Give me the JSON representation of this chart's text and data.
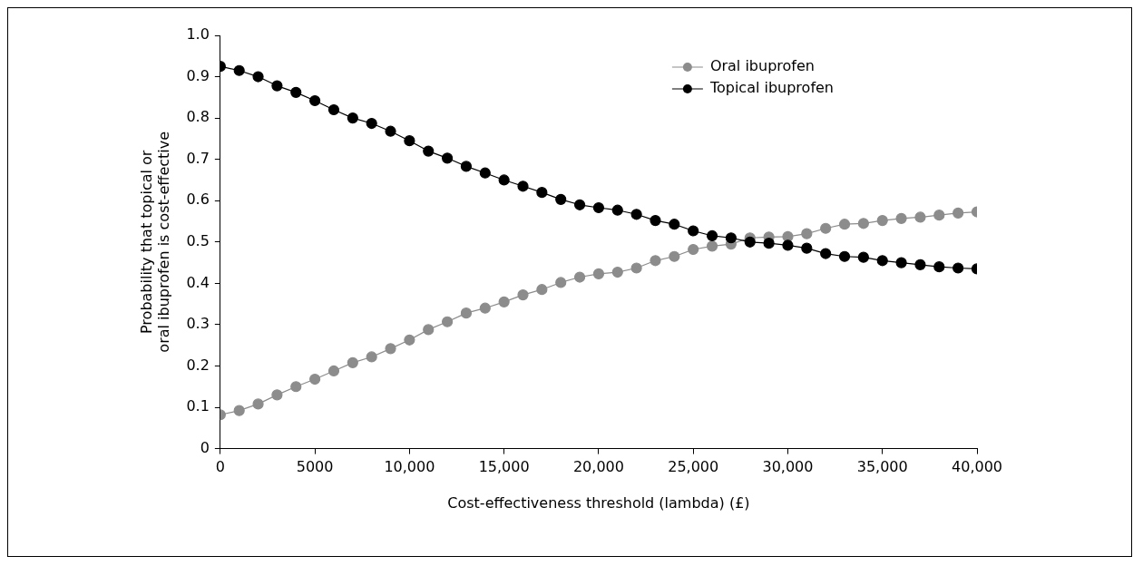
{
  "chart_data": {
    "type": "line",
    "xlabel": "Cost-effectiveness threshold (lambda) (£)",
    "ylabel": "Probability that topical or oral ibuprofen is cost-effective",
    "x": [
      0,
      1000,
      2000,
      3000,
      4000,
      5000,
      6000,
      7000,
      8000,
      9000,
      10000,
      11000,
      12000,
      13000,
      14000,
      15000,
      16000,
      17000,
      18000,
      19000,
      20000,
      21000,
      22000,
      23000,
      24000,
      25000,
      26000,
      27000,
      28000,
      29000,
      30000,
      31000,
      32000,
      33000,
      34000,
      35000,
      36000,
      37000,
      38000,
      39000,
      40000
    ],
    "series": [
      {
        "name": "Oral ibuprofen",
        "color": "#8c8c8c",
        "values": [
          0.082,
          0.092,
          0.108,
          0.13,
          0.15,
          0.168,
          0.188,
          0.208,
          0.222,
          0.242,
          0.263,
          0.288,
          0.307,
          0.328,
          0.34,
          0.355,
          0.372,
          0.385,
          0.402,
          0.415,
          0.423,
          0.427,
          0.437,
          0.455,
          0.465,
          0.482,
          0.49,
          0.495,
          0.51,
          0.512,
          0.513,
          0.52,
          0.533,
          0.543,
          0.545,
          0.552,
          0.557,
          0.56,
          0.565,
          0.57,
          0.573
        ]
      },
      {
        "name": "Topical ibuprofen",
        "color": "#000000",
        "values": [
          0.925,
          0.915,
          0.9,
          0.878,
          0.862,
          0.842,
          0.82,
          0.8,
          0.787,
          0.768,
          0.745,
          0.72,
          0.703,
          0.683,
          0.667,
          0.65,
          0.635,
          0.62,
          0.603,
          0.59,
          0.583,
          0.577,
          0.567,
          0.552,
          0.543,
          0.527,
          0.515,
          0.51,
          0.5,
          0.497,
          0.492,
          0.485,
          0.472,
          0.465,
          0.463,
          0.455,
          0.45,
          0.445,
          0.44,
          0.437,
          0.435
        ]
      }
    ],
    "xlim": [
      0,
      40000
    ],
    "xticks": [
      0,
      5000,
      {
        "value": 10000,
        "label": "10,000"
      },
      {
        "value": 15000,
        "label": "15,000"
      },
      {
        "value": 20000,
        "label": "20,000"
      },
      {
        "value": 25000,
        "label": "25,000"
      },
      {
        "value": 30000,
        "label": "30,000"
      },
      {
        "value": 35000,
        "label": "35,000"
      },
      {
        "value": 40000,
        "label": "40,000"
      }
    ],
    "ylim": [
      0,
      1
    ],
    "yticks": [
      0,
      0.1,
      0.2,
      0.3,
      0.4,
      0.5,
      0.6,
      0.7,
      0.8,
      0.9,
      {
        "value": 1,
        "label": "1.0"
      }
    ],
    "grid": false,
    "legend": "top right",
    "marker": "circle",
    "line_style": "solid"
  }
}
